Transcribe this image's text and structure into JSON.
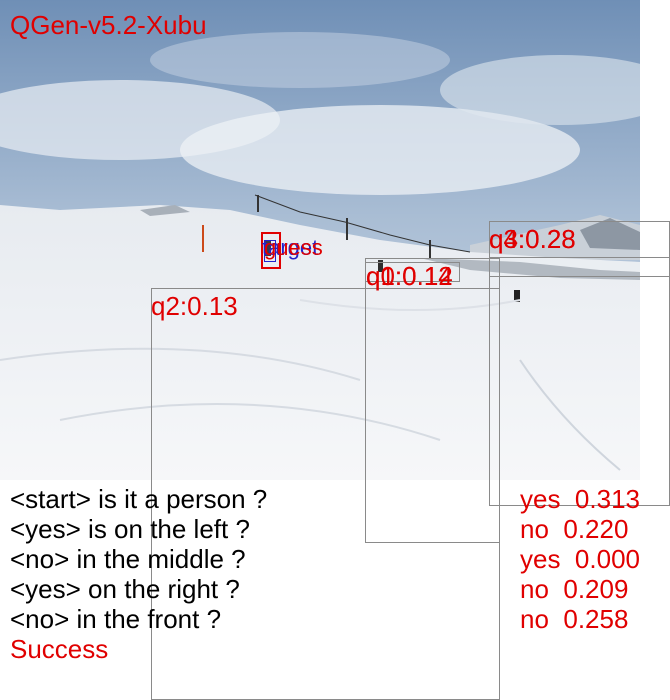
{
  "model_title": "QGen-v5.2-Xubu",
  "target_box": {
    "label_blue": "target",
    "label_red": "guess"
  },
  "boxes": [
    {
      "label": "q3:0.28"
    },
    {
      "label": "q4:0.28"
    },
    {
      "label": "q0:0.14"
    },
    {
      "label": "q1:0.12"
    },
    {
      "label": "q2:0.13"
    }
  ],
  "dialogue": [
    {
      "question": "<start> is it a person ?",
      "answer": "yes",
      "score": "0.313"
    },
    {
      "question": "<yes> is on the left ?",
      "answer": "no",
      "score": "0.220"
    },
    {
      "question": "<no> in the middle ?",
      "answer": "yes",
      "score": "0.000"
    },
    {
      "question": "<yes> on the right ?",
      "answer": "no",
      "score": "0.209"
    },
    {
      "question": "<no> in the front ?",
      "answer": "no",
      "score": "0.258"
    }
  ],
  "result": "Success",
  "colors": {
    "label_red": "#e00000",
    "label_blue": "#2222cc",
    "sky": "#8fa9c8",
    "snow": "#f3f4f6"
  }
}
